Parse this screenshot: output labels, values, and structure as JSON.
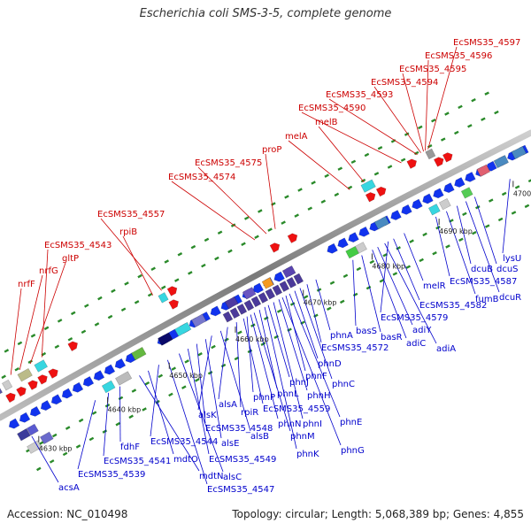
{
  "title": "Escherichia coli SMS-3-5, complete genome",
  "accession": "Accession: NC_010498",
  "topology": "Topology: circular; Length: 5,068,389 bp; Genes: 4,855",
  "colors": {
    "forward_label": "#cc0000",
    "reverse_label": "#0000cc",
    "forward_feature": "#ee1111",
    "reverse_feature": "#1133ee",
    "backbone": "#8a8a8a",
    "dots": "#2a8a2a"
  },
  "kbp_ticks": [
    "4630 kbp",
    "4640 kbp",
    "4650 kbp",
    "4660 kbp",
    "4670 kbp",
    "4680 kbp",
    "4690 kbp",
    "4700 kbp"
  ],
  "forward_labels": [
    "nrfF",
    "nrfG",
    "gltP",
    "EcSMS35_4543",
    "rpiB",
    "EcSMS35_4557",
    "EcSMS35_4574",
    "EcSMS35_4575",
    "proP",
    "melA",
    "melB",
    "EcSMS35_4590",
    "EcSMS35_4593",
    "EcSMS35_4594",
    "EcSMS35_4595",
    "EcSMS35_4596",
    "EcSMS35_4597"
  ],
  "reverse_labels": [
    "acsA",
    "EcSMS35_4539",
    "EcSMS35_4541",
    "fdhF",
    "mdtN",
    "mdtO",
    "EcSMS35_4544",
    "EcSMS35_4547",
    "alsC",
    "EcSMS35_4549",
    "EcSMS35_4548",
    "alsE",
    "alsK",
    "alsB",
    "alsA",
    "rpiR",
    "EcSMS35_4559",
    "phnP",
    "phnN",
    "phnM",
    "phnL",
    "phnK",
    "phnJ",
    "phnI",
    "phnH",
    "phnG",
    "phnF",
    "phnE",
    "phnD",
    "phnC",
    "EcSMS35_4572",
    "phnA",
    "basS",
    "basR",
    "adiC",
    "adiY",
    "adiA",
    "EcSMS35_4579",
    "EcSMS35_4582",
    "melR",
    "EcSMS35_4587",
    "fumB",
    "dcuB",
    "dcuR",
    "dcuS",
    "lysU"
  ]
}
